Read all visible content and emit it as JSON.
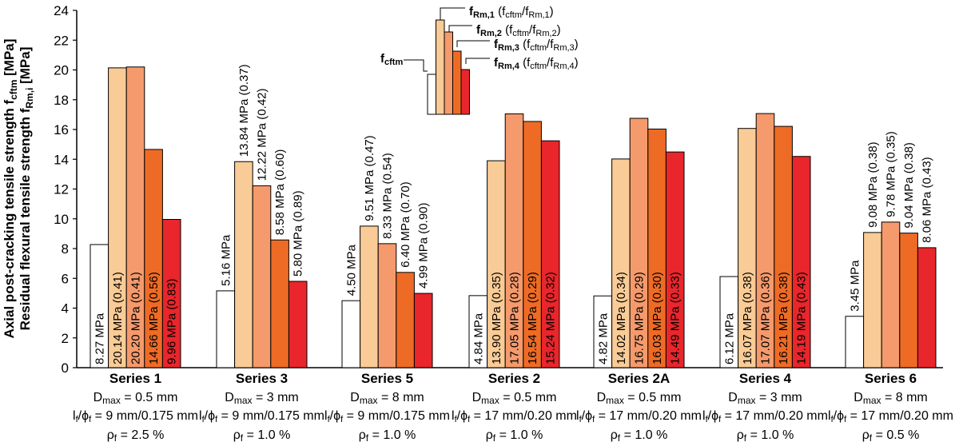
{
  "chart_data": {
    "type": "bar",
    "ylabel_line1": "Axial post-cracking tensile strength f",
    "ylabel_line1_sub": "cftm",
    "ylabel_line1_unit": " [MPa]",
    "ylabel_line2": "Residual flexural tensile strength f",
    "ylabel_line2_sub": "Rm,i",
    "ylabel_line2_unit": " [MPa]",
    "ylim": [
      0,
      24
    ],
    "yticks": [
      "0",
      "2",
      "4",
      "6",
      "8",
      "10",
      "12",
      "14",
      "16",
      "18",
      "20",
      "22",
      "24"
    ],
    "series_names": [
      "fcftm",
      "fRm,1",
      "fRm,2",
      "fRm,3",
      "fRm,4"
    ],
    "colors": [
      "#ffffff",
      "#f9cb96",
      "#f59a6c",
      "#ee6b25",
      "#e8262b"
    ],
    "groups": [
      {
        "name": "Series 1",
        "dmax": "= 0.5 mm",
        "lf": "= 9 mm/0.175 mm",
        "rho": "= 2.5 %",
        "values": [
          8.27,
          20.14,
          20.2,
          14.66,
          9.96
        ],
        "labels": [
          "8.27 MPa",
          "20.14 MPa (0.41)",
          "20.20 MPa (0.41)",
          "14.66 MPa (0.56)",
          "9.96 MPa (0.83)"
        ],
        "inside": true
      },
      {
        "name": "Series 3",
        "dmax": "= 3 mm",
        "lf": "= 9 mm/0.175 mm",
        "rho": "= 1.0 %",
        "values": [
          5.16,
          13.84,
          12.22,
          8.58,
          5.8
        ],
        "labels": [
          "5.16 MPa",
          "13.84 MPa (0.37)",
          "12.22 MPa (0.42)",
          "8.58 MPa (0.60)",
          "5.80 MPa (0.89)"
        ],
        "inside": false
      },
      {
        "name": "Series 5",
        "dmax": "= 8 mm",
        "lf": "= 9 mm/0.175 mm",
        "rho": "= 1.0 %",
        "values": [
          4.5,
          9.51,
          8.33,
          6.4,
          4.99
        ],
        "labels": [
          "4.50 MPa",
          "9.51 MPa (0.47)",
          "8.33 MPa (0.54)",
          "6.40 MPa (0.70)",
          "4.99 MPa (0.90)"
        ],
        "inside": false
      },
      {
        "name": "Series 2",
        "dmax": "= 0.5 mm",
        "lf": "= 17 mm/0.20 mm",
        "rho": "= 1.0 %",
        "values": [
          4.84,
          13.9,
          17.05,
          16.54,
          15.24
        ],
        "labels": [
          "4.84 MPa",
          "13.90 MPa (0.35)",
          "17.05 MPa (0.28)",
          "16.54 MPa (0.29)",
          "15.24 MPa (0.32)"
        ],
        "inside": true
      },
      {
        "name": "Series 2A",
        "dmax": "= 0.5 mm",
        "lf": "= 17 mm/0.20 mm",
        "rho": "= 1.0 %",
        "values": [
          4.82,
          14.02,
          16.75,
          16.03,
          14.49
        ],
        "labels": [
          "4.82 MPa",
          "14.02 MPa (0.34)",
          "16.75 MPa (0.29)",
          "16.03 MPa (0.30)",
          "14.49 MPa (0.33)"
        ],
        "inside": true
      },
      {
        "name": "Series 4",
        "dmax": "= 3 mm",
        "lf": "= 17 mm/0.20 mm",
        "rho": "= 1.0 %",
        "values": [
          6.12,
          16.07,
          17.07,
          16.21,
          14.19
        ],
        "labels": [
          "6.12 MPa",
          "16.07 MPa (0.38)",
          "17.07 MPa (0.36)",
          "16.21 MPa (0.38)",
          "14.19 MPa (0.43)"
        ],
        "inside": true
      },
      {
        "name": "Series 6",
        "dmax": "= 8 mm",
        "lf": "= 17 mm/0.20 mm",
        "rho": "= 0.5 %",
        "values": [
          3.45,
          9.08,
          9.78,
          9.04,
          8.06
        ],
        "labels": [
          "3.45 MPa",
          "9.08 MPa (0.38)",
          "9.78 MPa (0.35)",
          "9.04 MPa (0.38)",
          "8.06 MPa (0.43)"
        ],
        "inside": false
      }
    ],
    "param_prefix": {
      "dmax": "D",
      "dmax_sub": "max",
      "lf": "l",
      "lf_sub1": "f",
      "lf_mid": "/ϕ",
      "lf_sub2": "f",
      "rho": "ρ",
      "rho_sub": "f"
    },
    "legend": {
      "fcftm": {
        "main": "f",
        "sub": "cftm"
      },
      "items": [
        {
          "main": "f",
          "sub": "Rm,1",
          "paren": "(f",
          "psub1": "cftm",
          "pmid": "/f",
          "psub2": "Rm,1",
          "pend": ")"
        },
        {
          "main": "f",
          "sub": "Rm,2",
          "paren": "(f",
          "psub1": "cftm",
          "pmid": "/f",
          "psub2": "Rm,2",
          "pend": ")"
        },
        {
          "main": "f",
          "sub": "Rm,3",
          "paren": "(f",
          "psub1": "cftm",
          "pmid": "/f",
          "psub2": "Rm,3",
          "pend": ")"
        },
        {
          "main": "f",
          "sub": "Rm,4",
          "paren": "(f",
          "psub1": "cftm",
          "pmid": "/f",
          "psub2": "Rm,4",
          "pend": ")"
        }
      ]
    }
  }
}
